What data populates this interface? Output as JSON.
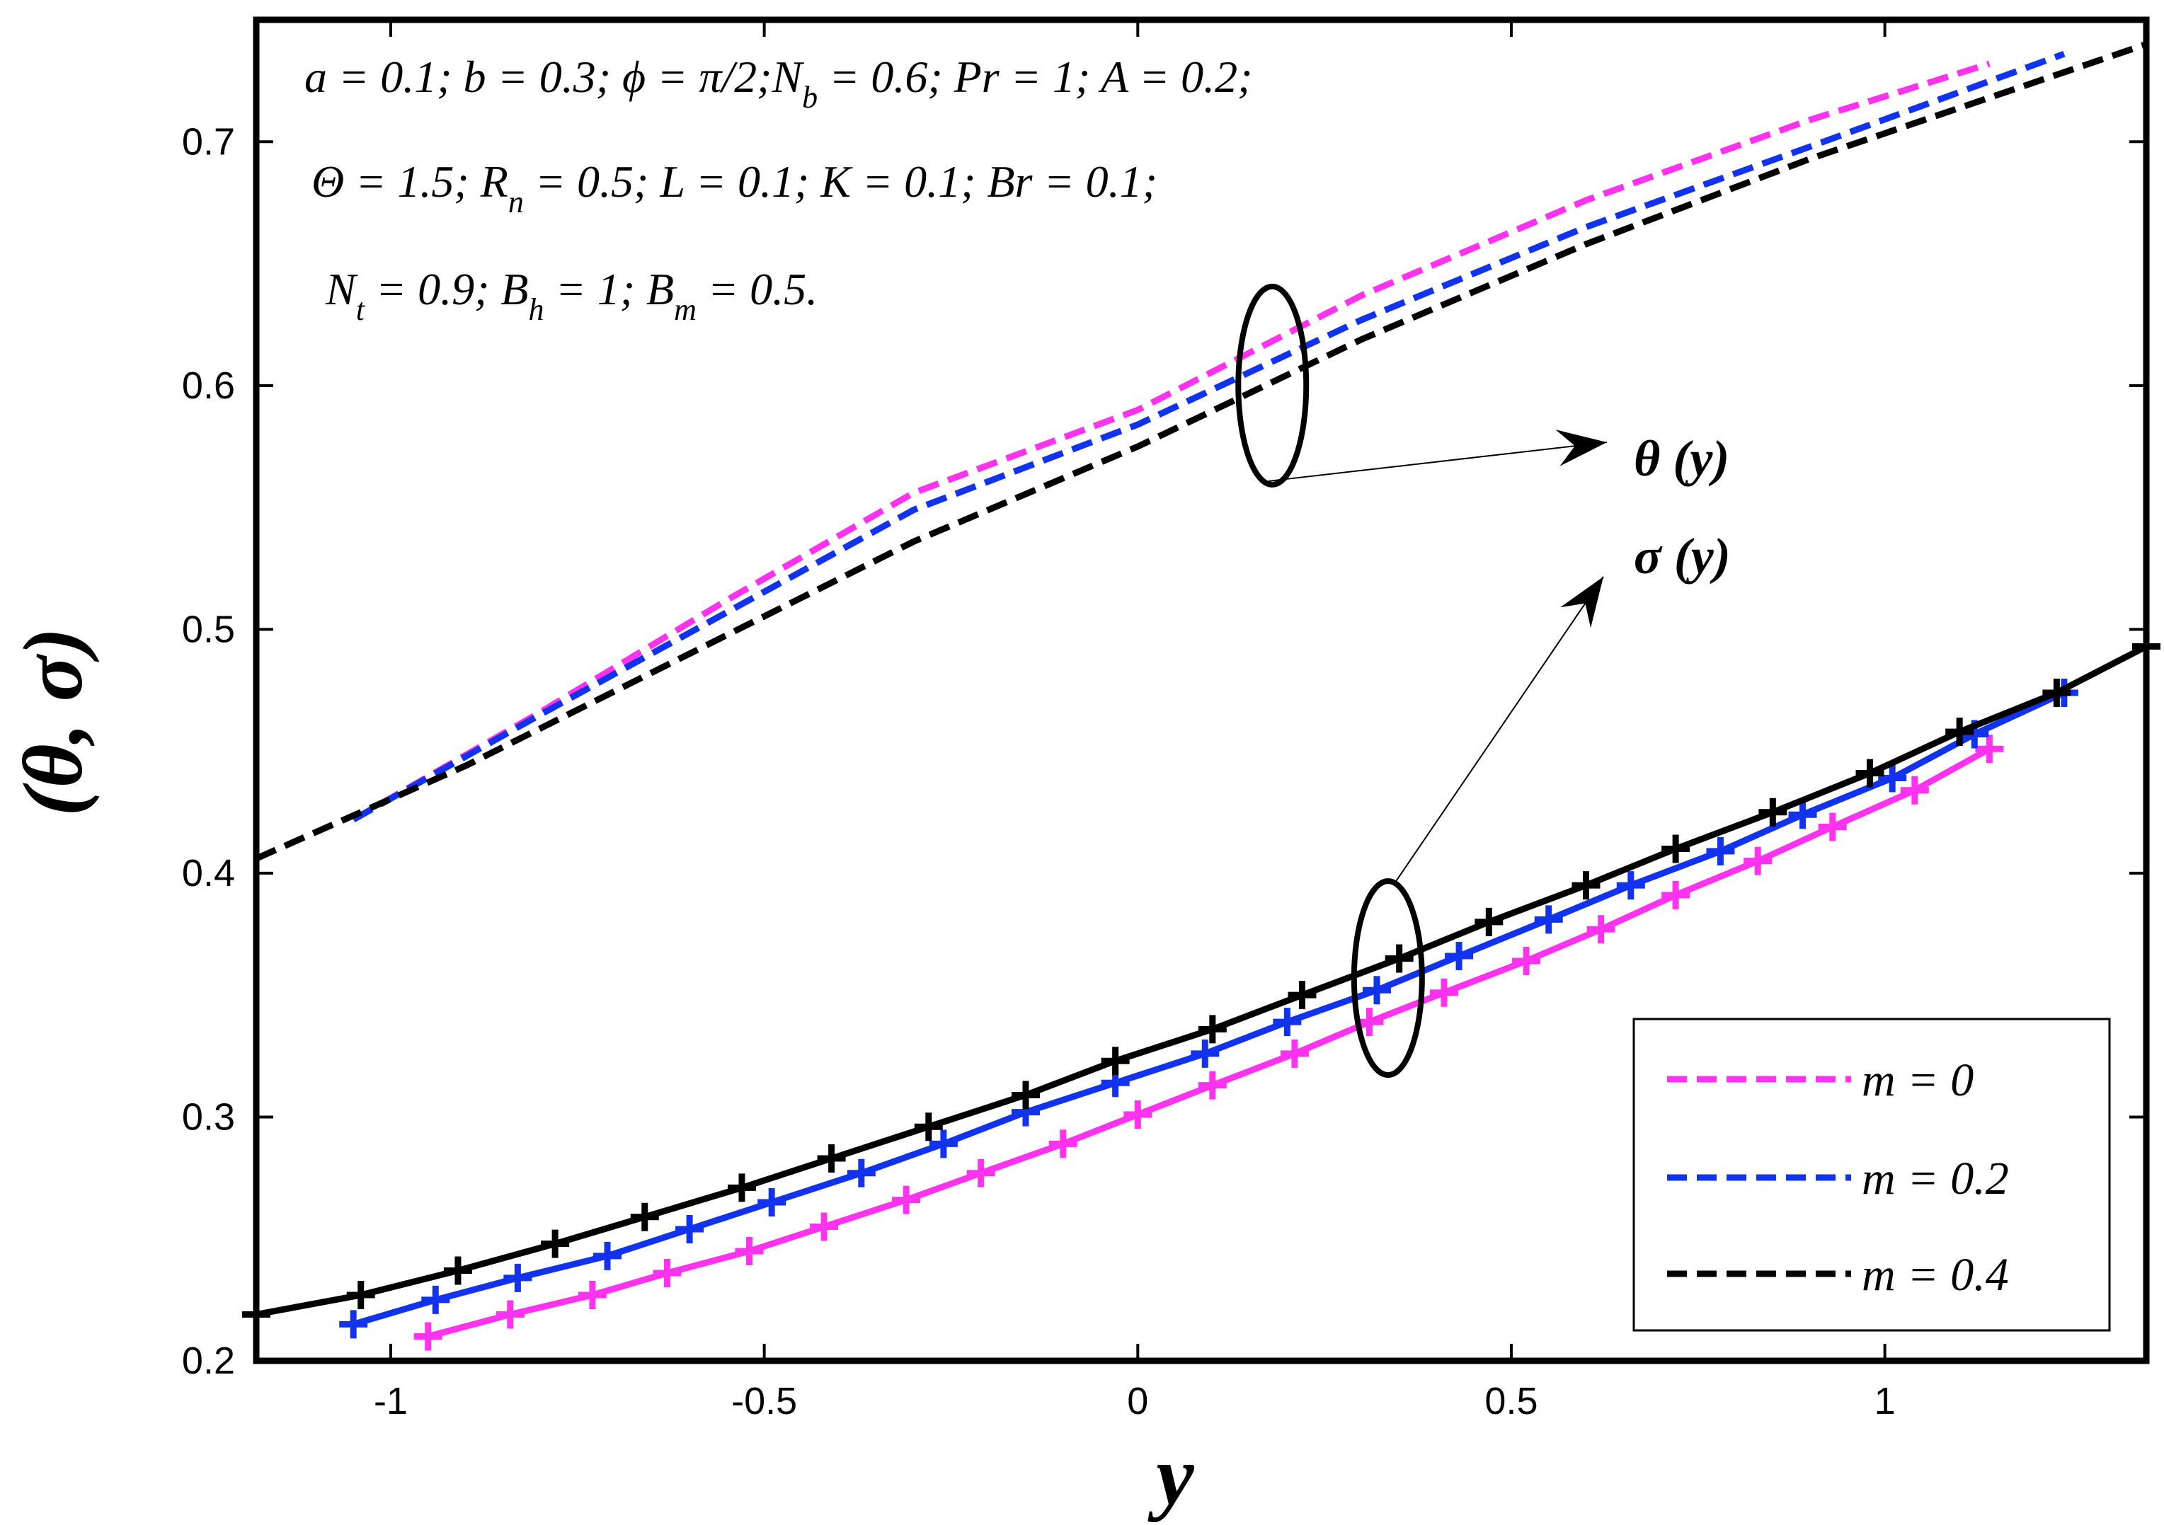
{
  "chart_data": {
    "type": "line",
    "xlabel": "y",
    "ylabel": "(θ, σ)",
    "xlim": [
      -1.18,
      1.35
    ],
    "ylim": [
      0.2,
      0.75
    ],
    "xticks": [
      -1,
      -0.5,
      0,
      0.5,
      1
    ],
    "xtick_labels": [
      "-1",
      "-0.5",
      "0",
      "0.5",
      "1"
    ],
    "yticks": [
      0.2,
      0.3,
      0.4,
      0.5,
      0.6,
      0.7
    ],
    "ytick_labels": [
      "0.2",
      "0.3",
      "0.4",
      "0.5",
      "0.6",
      "0.7"
    ],
    "grid": false,
    "legend_position": "bottom-right",
    "parameter_lines": [
      {
        "text": "a = 0.1; b = 0.3;  ϕ = π/2;N",
        "sub": "b",
        "after": " = 0.6; Pr = 1; A = 0.2;"
      },
      {
        "text": "Θ = 1.5; R",
        "sub": "n",
        "after": " = 0.5; L = 0.1; K = 0.1; Br = 0.1;"
      },
      {
        "text": "N",
        "sub": "t",
        "after": " = 0.9;  B",
        "sub2": "h",
        "after2": " = 1; B",
        "sub3": "m",
        "after3": " = 0.5."
      }
    ],
    "annotations": [
      {
        "label": "θ (y)"
      },
      {
        "label": "σ (y)"
      }
    ],
    "series": [
      {
        "name": "m = 0",
        "curve": "theta",
        "color": "#ff33ee",
        "style": "dashed",
        "x": [
          -1.05,
          -0.8,
          -0.55,
          -0.3,
          0,
          0.3,
          0.6,
          0.9,
          1.14
        ],
        "y": [
          0.422,
          0.466,
          0.512,
          0.556,
          0.59,
          0.637,
          0.676,
          0.709,
          0.732
        ]
      },
      {
        "name": "m = 0.2",
        "curve": "theta",
        "color": "#1133ee",
        "style": "dashed",
        "x": [
          -1.05,
          -0.8,
          -0.55,
          -0.3,
          0,
          0.3,
          0.6,
          0.9,
          1.24
        ],
        "y": [
          0.422,
          0.465,
          0.507,
          0.549,
          0.584,
          0.627,
          0.665,
          0.698,
          0.736
        ]
      },
      {
        "name": "m = 0.4",
        "curve": "theta",
        "color": "#000000",
        "style": "dashed",
        "x": [
          -1.18,
          -0.9,
          -0.6,
          -0.3,
          0,
          0.3,
          0.6,
          0.9,
          1.35
        ],
        "y": [
          0.406,
          0.444,
          0.49,
          0.536,
          0.575,
          0.619,
          0.658,
          0.693,
          0.74
        ]
      },
      {
        "name": "m = 0",
        "curve": "sigma",
        "color": "#ff33ee",
        "style": "solid",
        "marker": "plus",
        "x": [
          -0.95,
          -0.84,
          -0.73,
          -0.63,
          -0.52,
          -0.42,
          -0.31,
          -0.21,
          -0.1,
          0,
          0.1,
          0.21,
          0.31,
          0.41,
          0.52,
          0.62,
          0.72,
          0.83,
          0.93,
          1.04,
          1.14
        ],
        "y": [
          0.21,
          0.219,
          0.227,
          0.236,
          0.245,
          0.255,
          0.266,
          0.277,
          0.289,
          0.301,
          0.313,
          0.326,
          0.339,
          0.351,
          0.364,
          0.377,
          0.391,
          0.405,
          0.419,
          0.434,
          0.451
        ]
      },
      {
        "name": "m = 0.2",
        "curve": "sigma",
        "color": "#1133ee",
        "style": "solid",
        "marker": "plus",
        "x": [
          -1.05,
          -0.94,
          -0.83,
          -0.71,
          -0.6,
          -0.49,
          -0.37,
          -0.26,
          -0.15,
          -0.03,
          0.09,
          0.2,
          0.32,
          0.43,
          0.55,
          0.66,
          0.78,
          0.89,
          1.01,
          1.12,
          1.24
        ],
        "y": [
          0.215,
          0.225,
          0.234,
          0.243,
          0.254,
          0.265,
          0.277,
          0.289,
          0.302,
          0.314,
          0.326,
          0.339,
          0.352,
          0.366,
          0.381,
          0.395,
          0.409,
          0.424,
          0.439,
          0.457,
          0.474
        ]
      },
      {
        "name": "m = 0.4",
        "curve": "sigma",
        "color": "#000000",
        "style": "solid",
        "marker": "plus",
        "x": [
          -1.18,
          -1.04,
          -0.91,
          -0.78,
          -0.66,
          -0.53,
          -0.41,
          -0.28,
          -0.15,
          -0.03,
          0.1,
          0.22,
          0.35,
          0.47,
          0.6,
          0.72,
          0.85,
          0.98,
          1.1,
          1.23,
          1.35
        ],
        "y": [
          0.219,
          0.227,
          0.237,
          0.248,
          0.259,
          0.271,
          0.283,
          0.296,
          0.309,
          0.323,
          0.336,
          0.35,
          0.365,
          0.38,
          0.395,
          0.41,
          0.425,
          0.441,
          0.458,
          0.474,
          0.493
        ]
      }
    ],
    "legend": [
      {
        "label": "m = 0",
        "color": "#ff33ee"
      },
      {
        "label": "m = 0.2",
        "color": "#1133ee"
      },
      {
        "label": "m = 0.4",
        "color": "#000000"
      }
    ]
  }
}
